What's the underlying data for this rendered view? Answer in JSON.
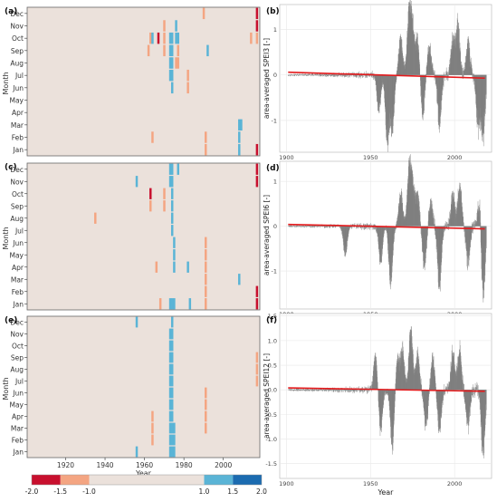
{
  "colors": {
    "heat_bg": "#ebe1db",
    "heat_border": "#666666",
    "dark_red": "#c8102e",
    "light_red": "#f4a582",
    "light_blue": "#5ab4d6",
    "dark_blue": "#1b6bb0",
    "trend": "#e41a1c",
    "bar": "#7f7f7f",
    "panel_bg": "#ffffff",
    "grid": "#e8e8e8",
    "frame": "#b3b3b3"
  },
  "months_display": [
    "Dec",
    "Nov",
    "Oct",
    "Sep",
    "Aug",
    "Jul",
    "Jun",
    "May",
    "Apr",
    "Mar",
    "Feb",
    "Jan"
  ],
  "heatmap_x_ticks": [
    "1920",
    "1940",
    "1960",
    "1980",
    "2000"
  ],
  "heatmap_x_tick_values": [
    1920,
    1940,
    1960,
    1980,
    2000
  ],
  "heatmap_xrange": [
    1901,
    2018
  ],
  "month_axis_label": "Month",
  "heatmap_xlabel": "Year",
  "legend": {
    "ticks": [
      "-2.0",
      "-1.5",
      "-1.0",
      "1.0",
      "1.5",
      "2.0"
    ],
    "breaks": [
      -2.0,
      -1.5,
      -1.0,
      1.0,
      1.5,
      2.0
    ]
  },
  "ts_x_ticks": [
    "1900",
    "1950",
    "2000"
  ],
  "ts_x_tick_values": [
    1900,
    1950,
    2000
  ],
  "ts_xlabel": "Year",
  "chart_data": [
    {
      "type": "heatmap",
      "panel": "(a)",
      "index": "SPEI3",
      "cells": [
        {
          "year": 1963,
          "month": "Oct",
          "class": "light_red"
        },
        {
          "year": 1962,
          "month": "Sep",
          "class": "light_red"
        },
        {
          "year": 1964,
          "month": "Oct",
          "class": "light_blue"
        },
        {
          "year": 1967,
          "month": "Oct",
          "class": "dark_red"
        },
        {
          "year": 1970,
          "month": "Nov",
          "class": "light_red"
        },
        {
          "year": 1970,
          "month": "Oct",
          "class": "light_red"
        },
        {
          "year": 1970,
          "month": "Sep",
          "class": "light_red"
        },
        {
          "year": 1973,
          "month": "Oct",
          "class": "light_blue"
        },
        {
          "year": 1973,
          "month": "Sep",
          "class": "light_blue"
        },
        {
          "year": 1973,
          "month": "Aug",
          "class": "light_blue"
        },
        {
          "year": 1973,
          "month": "Jul",
          "class": "light_blue"
        },
        {
          "year": 1974,
          "month": "Oct",
          "class": "light_blue"
        },
        {
          "year": 1974,
          "month": "Sep",
          "class": "light_blue"
        },
        {
          "year": 1974,
          "month": "Aug",
          "class": "light_blue"
        },
        {
          "year": 1974,
          "month": "Jul",
          "class": "light_blue"
        },
        {
          "year": 1974,
          "month": "Jun",
          "class": "light_blue"
        },
        {
          "year": 1976,
          "month": "Nov",
          "class": "light_blue"
        },
        {
          "year": 1976,
          "month": "Oct",
          "class": "light_blue"
        },
        {
          "year": 1977,
          "month": "Oct",
          "class": "light_blue"
        },
        {
          "year": 1977,
          "month": "Sep",
          "class": "light_red"
        },
        {
          "year": 1977,
          "month": "Aug",
          "class": "light_red"
        },
        {
          "year": 1976,
          "month": "Aug",
          "class": "light_red"
        },
        {
          "year": 1964,
          "month": "Feb",
          "class": "light_red"
        },
        {
          "year": 1982,
          "month": "Jul",
          "class": "light_red"
        },
        {
          "year": 1982,
          "month": "Jun",
          "class": "light_red"
        },
        {
          "year": 1990,
          "month": "Dec",
          "class": "light_red"
        },
        {
          "year": 1992,
          "month": "Sep",
          "class": "light_blue"
        },
        {
          "year": 1991,
          "month": "Feb",
          "class": "light_red"
        },
        {
          "year": 1991,
          "month": "Jan",
          "class": "light_red"
        },
        {
          "year": 2008,
          "month": "Mar",
          "class": "light_blue"
        },
        {
          "year": 2008,
          "month": "Feb",
          "class": "light_blue"
        },
        {
          "year": 2008,
          "month": "Jan",
          "class": "light_blue"
        },
        {
          "year": 2009,
          "month": "Mar",
          "class": "light_blue"
        },
        {
          "year": 2014,
          "month": "Oct",
          "class": "light_red"
        },
        {
          "year": 2017,
          "month": "Dec",
          "class": "dark_red"
        },
        {
          "year": 2017,
          "month": "Nov",
          "class": "dark_red"
        },
        {
          "year": 2017,
          "month": "Oct",
          "class": "light_red"
        },
        {
          "year": 2017,
          "month": "Jan",
          "class": "dark_red"
        }
      ]
    },
    {
      "type": "heatmap",
      "panel": "(c)",
      "index": "SPEI6",
      "cells": [
        {
          "year": 1956,
          "month": "Nov",
          "class": "light_blue"
        },
        {
          "year": 1935,
          "month": "Aug",
          "class": "light_red"
        },
        {
          "year": 1963,
          "month": "Oct",
          "class": "dark_red"
        },
        {
          "year": 1963,
          "month": "Sep",
          "class": "light_red"
        },
        {
          "year": 1973,
          "month": "Dec",
          "class": "light_blue"
        },
        {
          "year": 1973,
          "month": "Nov",
          "class": "light_blue"
        },
        {
          "year": 1974,
          "month": "Dec",
          "class": "light_blue"
        },
        {
          "year": 1974,
          "month": "Nov",
          "class": "light_blue"
        },
        {
          "year": 1974,
          "month": "Oct",
          "class": "light_blue"
        },
        {
          "year": 1974,
          "month": "Sep",
          "class": "light_blue"
        },
        {
          "year": 1974,
          "month": "Aug",
          "class": "light_blue"
        },
        {
          "year": 1974,
          "month": "Jul",
          "class": "light_blue"
        },
        {
          "year": 1975,
          "month": "Jun",
          "class": "light_blue"
        },
        {
          "year": 1975,
          "month": "May",
          "class": "light_blue"
        },
        {
          "year": 1975,
          "month": "Apr",
          "class": "light_blue"
        },
        {
          "year": 1977,
          "month": "Dec",
          "class": "light_blue"
        },
        {
          "year": 1970,
          "month": "Oct",
          "class": "light_red"
        },
        {
          "year": 1970,
          "month": "Sep",
          "class": "light_red"
        },
        {
          "year": 1966,
          "month": "Apr",
          "class": "light_red"
        },
        {
          "year": 1968,
          "month": "Jan",
          "class": "light_red"
        },
        {
          "year": 1973,
          "month": "Jan",
          "class": "light_blue"
        },
        {
          "year": 1974,
          "month": "Jan",
          "class": "light_blue"
        },
        {
          "year": 1975,
          "month": "Jan",
          "class": "light_blue"
        },
        {
          "year": 1982,
          "month": "Apr",
          "class": "light_blue"
        },
        {
          "year": 1983,
          "month": "Jan",
          "class": "light_blue"
        },
        {
          "year": 1991,
          "month": "Jun",
          "class": "light_red"
        },
        {
          "year": 1991,
          "month": "May",
          "class": "light_red"
        },
        {
          "year": 1991,
          "month": "Apr",
          "class": "light_red"
        },
        {
          "year": 1991,
          "month": "Mar",
          "class": "light_red"
        },
        {
          "year": 1991,
          "month": "Feb",
          "class": "light_red"
        },
        {
          "year": 1991,
          "month": "Jan",
          "class": "light_red"
        },
        {
          "year": 2008,
          "month": "Mar",
          "class": "light_blue"
        },
        {
          "year": 2017,
          "month": "Dec",
          "class": "dark_red"
        },
        {
          "year": 2017,
          "month": "Nov",
          "class": "dark_red"
        },
        {
          "year": 2017,
          "month": "Feb",
          "class": "dark_red"
        },
        {
          "year": 2017,
          "month": "Jan",
          "class": "dark_red"
        }
      ]
    },
    {
      "type": "heatmap",
      "panel": "(e)",
      "index": "SPEI12",
      "cells": [
        {
          "year": 1956,
          "month": "Dec",
          "class": "light_blue"
        },
        {
          "year": 1956,
          "month": "Jan",
          "class": "light_blue"
        },
        {
          "year": 1964,
          "month": "Apr",
          "class": "light_red"
        },
        {
          "year": 1964,
          "month": "Mar",
          "class": "light_red"
        },
        {
          "year": 1964,
          "month": "Feb",
          "class": "light_red"
        },
        {
          "year": 1973,
          "month": "Nov",
          "class": "light_blue"
        },
        {
          "year": 1973,
          "month": "Oct",
          "class": "light_blue"
        },
        {
          "year": 1973,
          "month": "Sep",
          "class": "light_blue"
        },
        {
          "year": 1973,
          "month": "Aug",
          "class": "light_blue"
        },
        {
          "year": 1973,
          "month": "Jul",
          "class": "light_blue"
        },
        {
          "year": 1973,
          "month": "Jun",
          "class": "light_blue"
        },
        {
          "year": 1973,
          "month": "May",
          "class": "light_blue"
        },
        {
          "year": 1973,
          "month": "Apr",
          "class": "light_blue"
        },
        {
          "year": 1973,
          "month": "Mar",
          "class": "light_blue"
        },
        {
          "year": 1973,
          "month": "Feb",
          "class": "light_blue"
        },
        {
          "year": 1973,
          "month": "Jan",
          "class": "light_blue"
        },
        {
          "year": 1974,
          "month": "Dec",
          "class": "light_blue"
        },
        {
          "year": 1974,
          "month": "Nov",
          "class": "light_blue"
        },
        {
          "year": 1974,
          "month": "Oct",
          "class": "light_blue"
        },
        {
          "year": 1974,
          "month": "Sep",
          "class": "light_blue"
        },
        {
          "year": 1974,
          "month": "Aug",
          "class": "light_blue"
        },
        {
          "year": 1974,
          "month": "Jul",
          "class": "light_blue"
        },
        {
          "year": 1974,
          "month": "Jun",
          "class": "light_blue"
        },
        {
          "year": 1974,
          "month": "May",
          "class": "light_blue"
        },
        {
          "year": 1974,
          "month": "Apr",
          "class": "light_blue"
        },
        {
          "year": 1974,
          "month": "Mar",
          "class": "light_blue"
        },
        {
          "year": 1974,
          "month": "Feb",
          "class": "light_blue"
        },
        {
          "year": 1974,
          "month": "Jan",
          "class": "light_blue"
        },
        {
          "year": 1975,
          "month": "Mar",
          "class": "light_blue"
        },
        {
          "year": 1975,
          "month": "Feb",
          "class": "light_blue"
        },
        {
          "year": 1975,
          "month": "Jan",
          "class": "light_blue"
        },
        {
          "year": 1991,
          "month": "Jun",
          "class": "light_red"
        },
        {
          "year": 1991,
          "month": "May",
          "class": "light_red"
        },
        {
          "year": 1991,
          "month": "Apr",
          "class": "light_red"
        },
        {
          "year": 1991,
          "month": "Mar",
          "class": "light_red"
        },
        {
          "year": 2017,
          "month": "Sep",
          "class": "light_red"
        },
        {
          "year": 2017,
          "month": "Aug",
          "class": "light_red"
        },
        {
          "year": 2017,
          "month": "Jul",
          "class": "light_red"
        }
      ]
    },
    {
      "type": "bar",
      "panel": "(b)",
      "ylabel": "area-averaged SPEI3 [-]",
      "ylim": [
        -1.7,
        1.55
      ],
      "yticks": [
        1,
        0,
        -1
      ],
      "xlim": [
        1896,
        2022
      ],
      "x_range": [
        1901,
        2018
      ],
      "trend": {
        "start": [
          1901,
          0.06
        ],
        "end": [
          2018,
          -0.07
        ]
      },
      "bursts": [
        {
          "year": 1955,
          "amp": -0.9
        },
        {
          "year": 1960,
          "amp": -1.6
        },
        {
          "year": 1963,
          "amp": -1.3
        },
        {
          "year": 1968,
          "amp": 0.9
        },
        {
          "year": 1973,
          "amp": 1.5
        },
        {
          "year": 1975,
          "amp": 1.1
        },
        {
          "year": 1978,
          "amp": 0.9
        },
        {
          "year": 1981,
          "amp": -1.0
        },
        {
          "year": 1985,
          "amp": 0.7
        },
        {
          "year": 1991,
          "amp": -1.2
        },
        {
          "year": 1999,
          "amp": 0.9
        },
        {
          "year": 2002,
          "amp": 1.2
        },
        {
          "year": 2008,
          "amp": 0.8
        },
        {
          "year": 2014,
          "amp": -1.2
        },
        {
          "year": 2017,
          "amp": -1.5
        }
      ]
    },
    {
      "type": "bar",
      "panel": "(d)",
      "ylabel": "area-averaged SPEI6 [-]",
      "ylim": [
        -1.85,
        1.45
      ],
      "yticks": [
        1,
        0,
        -1
      ],
      "xlim": [
        1896,
        2022
      ],
      "x_range": [
        1901,
        2018
      ],
      "trend": {
        "start": [
          1901,
          0.04
        ],
        "end": [
          2018,
          -0.06
        ]
      },
      "bursts": [
        {
          "year": 1935,
          "amp": -0.7
        },
        {
          "year": 1956,
          "amp": -0.9
        },
        {
          "year": 1962,
          "amp": -1.4
        },
        {
          "year": 1968,
          "amp": 0.8
        },
        {
          "year": 1973,
          "amp": 1.4
        },
        {
          "year": 1975,
          "amp": 1.0
        },
        {
          "year": 1978,
          "amp": 0.8
        },
        {
          "year": 1982,
          "amp": -1.0
        },
        {
          "year": 1986,
          "amp": 0.6
        },
        {
          "year": 1991,
          "amp": -1.5
        },
        {
          "year": 1999,
          "amp": 0.8
        },
        {
          "year": 2003,
          "amp": 1.0
        },
        {
          "year": 2008,
          "amp": -0.9
        },
        {
          "year": 2015,
          "amp": 0.7
        },
        {
          "year": 2017,
          "amp": -1.8
        }
      ]
    },
    {
      "type": "bar",
      "panel": "(f)",
      "ylabel": "area-averaged SPEI12 [-]",
      "ylim": [
        -1.8,
        1.55
      ],
      "yticks": [
        1.5,
        1.0,
        0.5,
        0.0,
        -0.5,
        -1.0,
        -1.5
      ],
      "xlim": [
        1896,
        2022
      ],
      "x_range": [
        1901,
        2018
      ],
      "trend": {
        "start": [
          1901,
          0.04
        ],
        "end": [
          2018,
          -0.03
        ]
      },
      "bursts": [
        {
          "year": 1953,
          "amp": 0.8
        },
        {
          "year": 1956,
          "amp": -0.9
        },
        {
          "year": 1963,
          "amp": -1.3
        },
        {
          "year": 1966,
          "amp": 0.7
        },
        {
          "year": 1969,
          "amp": 0.9
        },
        {
          "year": 1974,
          "amp": 1.35
        },
        {
          "year": 1978,
          "amp": 0.8
        },
        {
          "year": 1983,
          "amp": -0.8
        },
        {
          "year": 1987,
          "amp": 0.7
        },
        {
          "year": 1991,
          "amp": -0.9
        },
        {
          "year": 1999,
          "amp": 0.8
        },
        {
          "year": 2003,
          "amp": 0.9
        },
        {
          "year": 2008,
          "amp": -0.8
        },
        {
          "year": 2017,
          "amp": -1.4
        }
      ]
    }
  ]
}
